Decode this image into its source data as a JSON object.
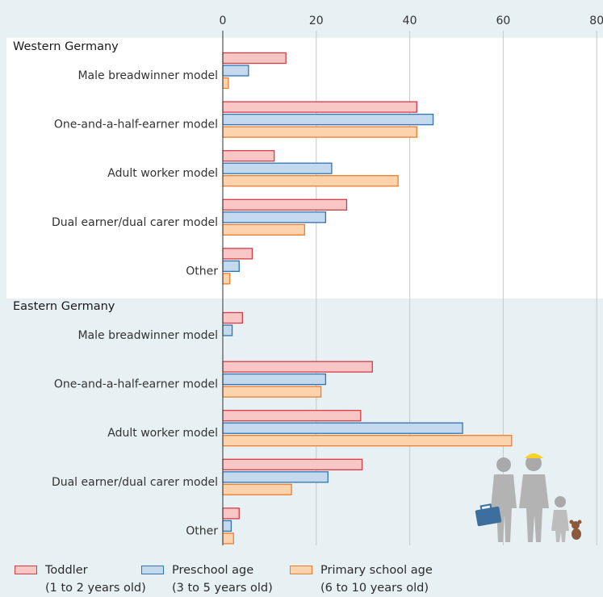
{
  "chart_data": {
    "type": "bar",
    "orientation": "horizontal",
    "xlim": [
      0,
      80
    ],
    "xticks": [
      "0",
      "20",
      "40",
      "60",
      "80"
    ],
    "grid": true,
    "legend_position": "bottom",
    "groups": [
      {
        "name": "Western Germany",
        "categories": [
          "Male breadwinner model",
          "One-and-a-half-earner model",
          "Adult worker model",
          "Dual earner/dual carer model",
          "Other"
        ],
        "series": [
          {
            "name": "Toddler",
            "values": [
              13.5,
              41.5,
              11,
              26.5,
              6.3
            ]
          },
          {
            "name": "Preschool age",
            "values": [
              5.5,
              45,
              23.3,
              22,
              3.5
            ]
          },
          {
            "name": "Primary school age",
            "values": [
              1.2,
              41.5,
              37.5,
              17.5,
              1.5
            ]
          }
        ]
      },
      {
        "name": "Eastern Germany",
        "categories": [
          "Male breadwinner model",
          "One-and-a-half-earner model",
          "Adult worker model",
          "Dual earner/dual carer model",
          "Other"
        ],
        "series": [
          {
            "name": "Toddler",
            "values": [
              4.2,
              32,
              29.5,
              29.8,
              3.5
            ]
          },
          {
            "name": "Preschool age",
            "values": [
              2,
              22,
              51.3,
              22.5,
              1.8
            ]
          },
          {
            "name": "Primary school age",
            "values": [
              0,
              21,
              61.8,
              14.7,
              2.3
            ]
          }
        ]
      }
    ],
    "legend": [
      {
        "label": "Toddler",
        "sub": "(1 to 2 years old)"
      },
      {
        "label": "Preschool age",
        "sub": "(3 to 5 years old)"
      },
      {
        "label": "Primary school age",
        "sub": "(6 to 10 years old)"
      }
    ]
  },
  "colors": {
    "toddler_fill": "#f9c6c6",
    "toddler_border": "#d23c46",
    "preschool_fill": "#c4d9ee",
    "preschool_border": "#2f74b5",
    "primary_fill": "#fcd3ad",
    "primary_border": "#ee7d2e",
    "west_bg": "#ffffff",
    "east_bg": "#e7f0f2",
    "grid": "#c8c8c8"
  },
  "decoration": {
    "icon": "family-icon"
  }
}
